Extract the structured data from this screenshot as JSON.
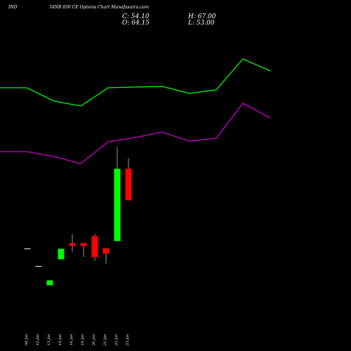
{
  "header": {
    "symbol": "IND",
    "title": "IANB 850  CE Options  Chart Munafasutra.com",
    "close": "C: 54.10",
    "open": "O: 64.15",
    "high": "H: 67.00",
    "low": "L: 53.00"
  },
  "chart_data": {
    "type": "candlestick",
    "categories": [
      "08 Jan",
      "12 Jan",
      "13 Jan",
      "14 Jan",
      "16 Jan",
      "19 Jan",
      "20 Jan",
      "21 Jan",
      "22 Jan",
      "23 Jan"
    ],
    "candles": [
      {
        "date": "08 Jan",
        "open": 31,
        "high": 31,
        "low": 31,
        "close": 31
      },
      {
        "date": "12 Jan",
        "open": 26,
        "high": 26,
        "low": 26,
        "close": 26
      },
      {
        "date": "13 Jan",
        "open": 20.6,
        "high": 22,
        "low": 20.6,
        "close": 22
      },
      {
        "date": "14 Jan",
        "open": 28,
        "high": 31,
        "low": 28,
        "close": 31
      },
      {
        "date": "16 Jan",
        "open": 32.6,
        "high": 35.2,
        "low": 30.2,
        "close": 31.8
      },
      {
        "date": "19 Jan",
        "open": 32.6,
        "high": 32.6,
        "low": 28.6,
        "close": 31.8
      },
      {
        "date": "20 Jan",
        "open": 34.6,
        "high": 35.2,
        "low": 27.6,
        "close": 28.6
      },
      {
        "date": "21 Jan",
        "open": 31.2,
        "high": 31.2,
        "low": 26.8,
        "close": 29.6
      },
      {
        "date": "22 Jan",
        "open": 33.2,
        "high": 60,
        "low": 33.2,
        "close": 53.8
      },
      {
        "date": "23 Jan",
        "open": 53.8,
        "high": 56.8,
        "low": 44.8,
        "close": 44.8
      }
    ],
    "bands": [
      {
        "color": "#00ff00",
        "x": [
          0,
          38,
          77,
          115,
          154,
          192,
          231,
          269,
          308,
          346,
          385
        ],
        "y": [
          125,
          125,
          144,
          151,
          125,
          124,
          123,
          133,
          128,
          84,
          101
        ]
      },
      {
        "color": "#cc00cc",
        "x": [
          0,
          38,
          77,
          115,
          154,
          192,
          231,
          269,
          308,
          346,
          385
        ],
        "y": [
          216,
          216,
          223,
          233,
          202,
          196,
          188,
          201,
          197,
          147,
          168
        ]
      }
    ],
    "colors": {
      "up": "#00ff00",
      "down": "#ff0000",
      "wick": "#ffffff",
      "background": "#000000"
    }
  }
}
